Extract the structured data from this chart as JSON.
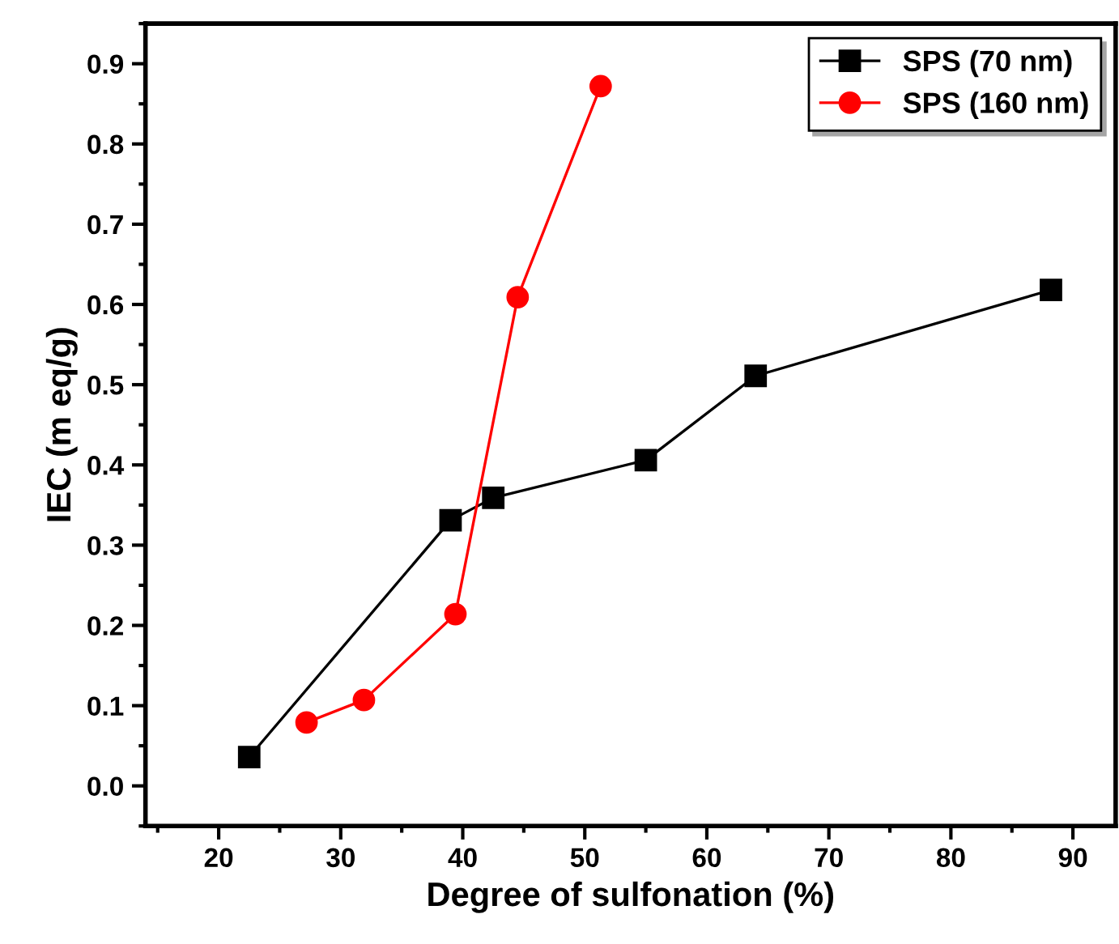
{
  "chart_data": {
    "type": "line",
    "xlabel": "Degree of sulfonation (%)",
    "ylabel": "IEC (m eq/g)",
    "xlim": [
      14,
      93.5
    ],
    "ylim": [
      -0.05,
      0.95
    ],
    "xticks": [
      20,
      30,
      40,
      50,
      60,
      70,
      80,
      90
    ],
    "yticks": [
      {
        "value": 0,
        "label": "0.0"
      },
      0.1,
      0.2,
      0.3,
      0.4,
      0.5,
      0.6,
      0.7,
      0.8,
      0.9
    ],
    "legend": "top right",
    "grid": false,
    "series": [
      {
        "name": "SPS (70 nm)",
        "color": "#000000",
        "marker": "square",
        "x": [
          22.5,
          39,
          42.5,
          55,
          64,
          88.2
        ],
        "values": [
          0.036,
          0.331,
          0.359,
          0.406,
          0.511,
          0.618
        ]
      },
      {
        "name": "SPS (160 nm)",
        "color": "#ff0000",
        "marker": "circle",
        "x": [
          27.2,
          31.9,
          39.4,
          44.5,
          51.3
        ],
        "values": [
          0.079,
          0.107,
          0.214,
          0.609,
          0.872
        ]
      }
    ]
  }
}
